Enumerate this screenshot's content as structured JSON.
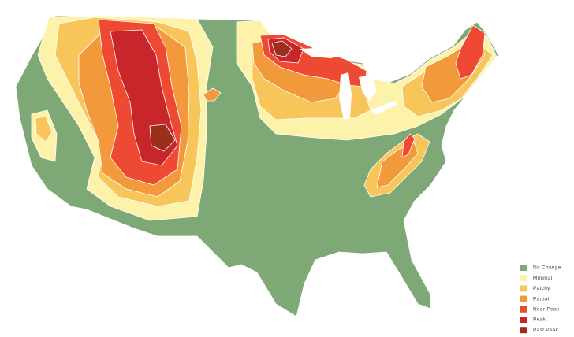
{
  "legend": {
    "items": [
      {
        "label": "No Change",
        "color": "#7fa877"
      },
      {
        "label": "Minimal",
        "color": "#fdf2a9"
      },
      {
        "label": "Patchy",
        "color": "#f8c55b"
      },
      {
        "label": "Partial",
        "color": "#f29a3b"
      },
      {
        "label": "Near Peak",
        "color": "#ee4a33"
      },
      {
        "label": "Peak",
        "color": "#c8262a"
      },
      {
        "label": "Past Peak",
        "color": "#9c2f1b"
      }
    ]
  }
}
